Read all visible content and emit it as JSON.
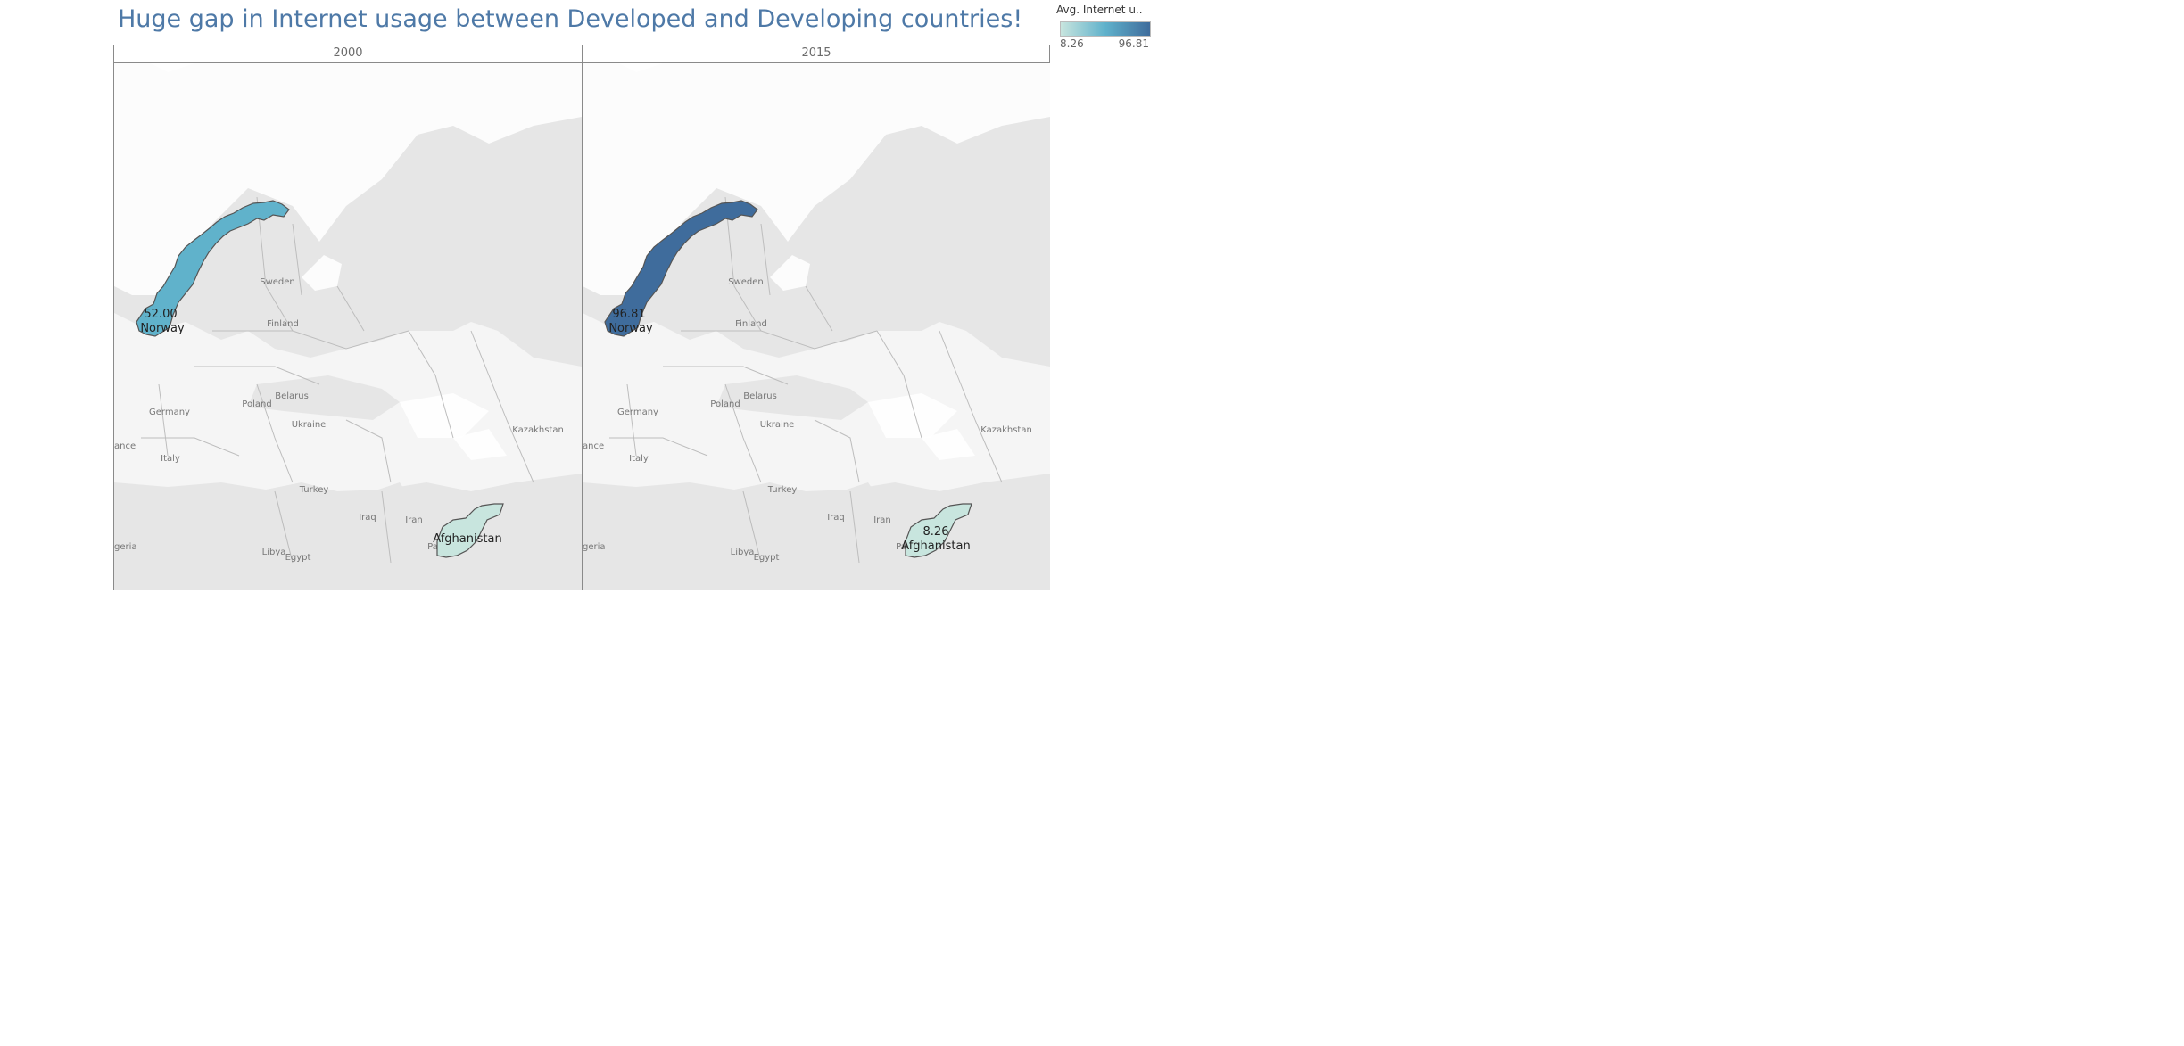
{
  "title": "Huge gap in Internet usage between Developed and Developing countries!",
  "legend": {
    "title": "Avg. Internet u..",
    "min_label": "8.26",
    "max_label": "96.81",
    "min": 8.26,
    "max": 96.81,
    "color_low": "#c8e5de",
    "color_mid": "#5fb1cb",
    "color_high": "#3f6c9c"
  },
  "colors": {
    "land": "#e6e6e6",
    "sea": "#f5f5f5",
    "border": "#bdbdbd",
    "title": "#4e79a7"
  },
  "panels": [
    {
      "year": "2000",
      "norway": {
        "value": 52.0,
        "value_label": "52.00",
        "name": "Norway"
      },
      "afghanistan": {
        "value": 8.26,
        "value_label": "",
        "name": "Afghanistan"
      }
    },
    {
      "year": "2015",
      "norway": {
        "value": 96.81,
        "value_label": "96.81",
        "name": "Norway"
      },
      "afghanistan": {
        "value": 8.26,
        "value_label": "8.26",
        "name": "Afghanistan"
      }
    }
  ],
  "base_labels": [
    "Sweden",
    "Finland",
    "Poland",
    "Belarus",
    "Germany",
    "Ukraine",
    "Kazakhstan",
    "Italy",
    "Turkey",
    "Iraq",
    "Iran",
    "Libya",
    "Egypt",
    "Pakistan",
    "ance",
    "geria"
  ],
  "chart_data": {
    "type": "map",
    "title": "Huge gap in Internet usage between Developed and Developing countries!",
    "measure": "Avg. Internet u..",
    "facets": [
      "2000",
      "2015"
    ],
    "series": [
      {
        "name": "Norway",
        "values": [
          52.0,
          96.81
        ]
      },
      {
        "name": "Afghanistan",
        "values": [
          8.26,
          8.26
        ]
      }
    ],
    "color_range": [
      8.26,
      96.81
    ]
  }
}
